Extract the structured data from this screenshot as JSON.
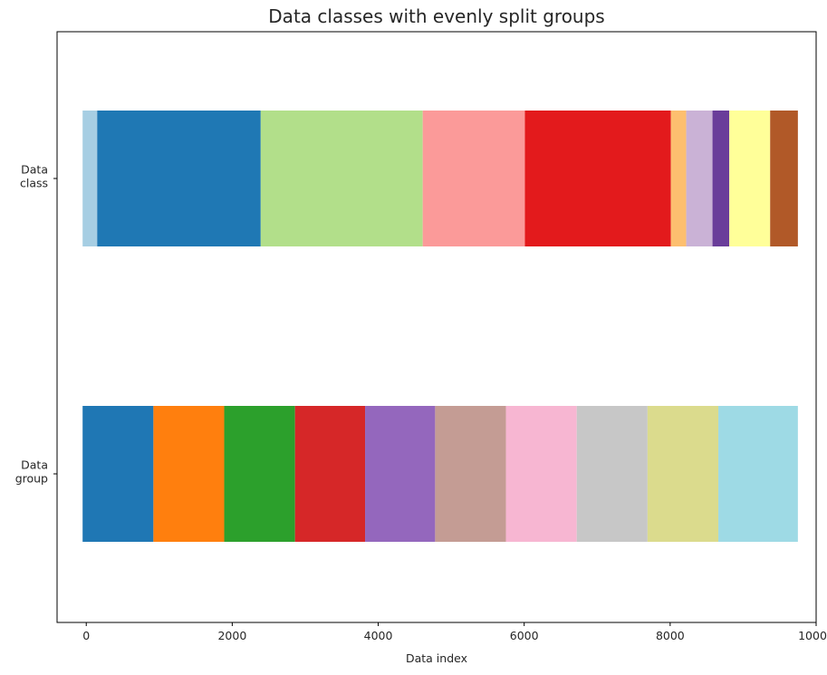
{
  "chart_data": {
    "type": "bar",
    "orientation": "horizontal-stacked",
    "title": "Data classes with evenly split groups",
    "xlabel": "Data index",
    "ylabel": "",
    "xlim": [
      -400,
      10000
    ],
    "xticks": [
      0,
      2000,
      4000,
      6000,
      8000,
      10000
    ],
    "xtick_labels": [
      "0",
      "2000",
      "4000",
      "6000",
      "8000",
      "10000"
    ],
    "grid": false,
    "legend": "none",
    "rows": [
      {
        "label_lines": [
          "Data",
          "class"
        ],
        "segments": [
          {
            "start": -50,
            "end": 150,
            "color": "#a6cee3"
          },
          {
            "start": 150,
            "end": 2390,
            "color": "#1f78b4"
          },
          {
            "start": 2390,
            "end": 4610,
            "color": "#b2df8a"
          },
          {
            "start": 4610,
            "end": 6010,
            "color": "#fb9a99"
          },
          {
            "start": 6010,
            "end": 8010,
            "color": "#e31a1c"
          },
          {
            "start": 8010,
            "end": 8220,
            "color": "#fdbf6f"
          },
          {
            "start": 8220,
            "end": 8580,
            "color": "#cab2d6"
          },
          {
            "start": 8580,
            "end": 8810,
            "color": "#6a3d9a"
          },
          {
            "start": 8810,
            "end": 9370,
            "color": "#ffff99"
          },
          {
            "start": 9370,
            "end": 9750,
            "color": "#b15928"
          }
        ]
      },
      {
        "label_lines": [
          "Data",
          "group"
        ],
        "segments": [
          {
            "start": -50,
            "end": 920,
            "color": "#1f77b4"
          },
          {
            "start": 920,
            "end": 1890,
            "color": "#ff7f0e"
          },
          {
            "start": 1890,
            "end": 2860,
            "color": "#2ca02c"
          },
          {
            "start": 2860,
            "end": 3820,
            "color": "#d62728"
          },
          {
            "start": 3820,
            "end": 4780,
            "color": "#9467bd"
          },
          {
            "start": 4780,
            "end": 5750,
            "color": "#c49c94"
          },
          {
            "start": 5750,
            "end": 6720,
            "color": "#f7b6d2"
          },
          {
            "start": 6720,
            "end": 7690,
            "color": "#c7c7c7"
          },
          {
            "start": 7690,
            "end": 8660,
            "color": "#dbdb8d"
          },
          {
            "start": 8660,
            "end": 9750,
            "color": "#9edae5"
          }
        ]
      }
    ]
  }
}
